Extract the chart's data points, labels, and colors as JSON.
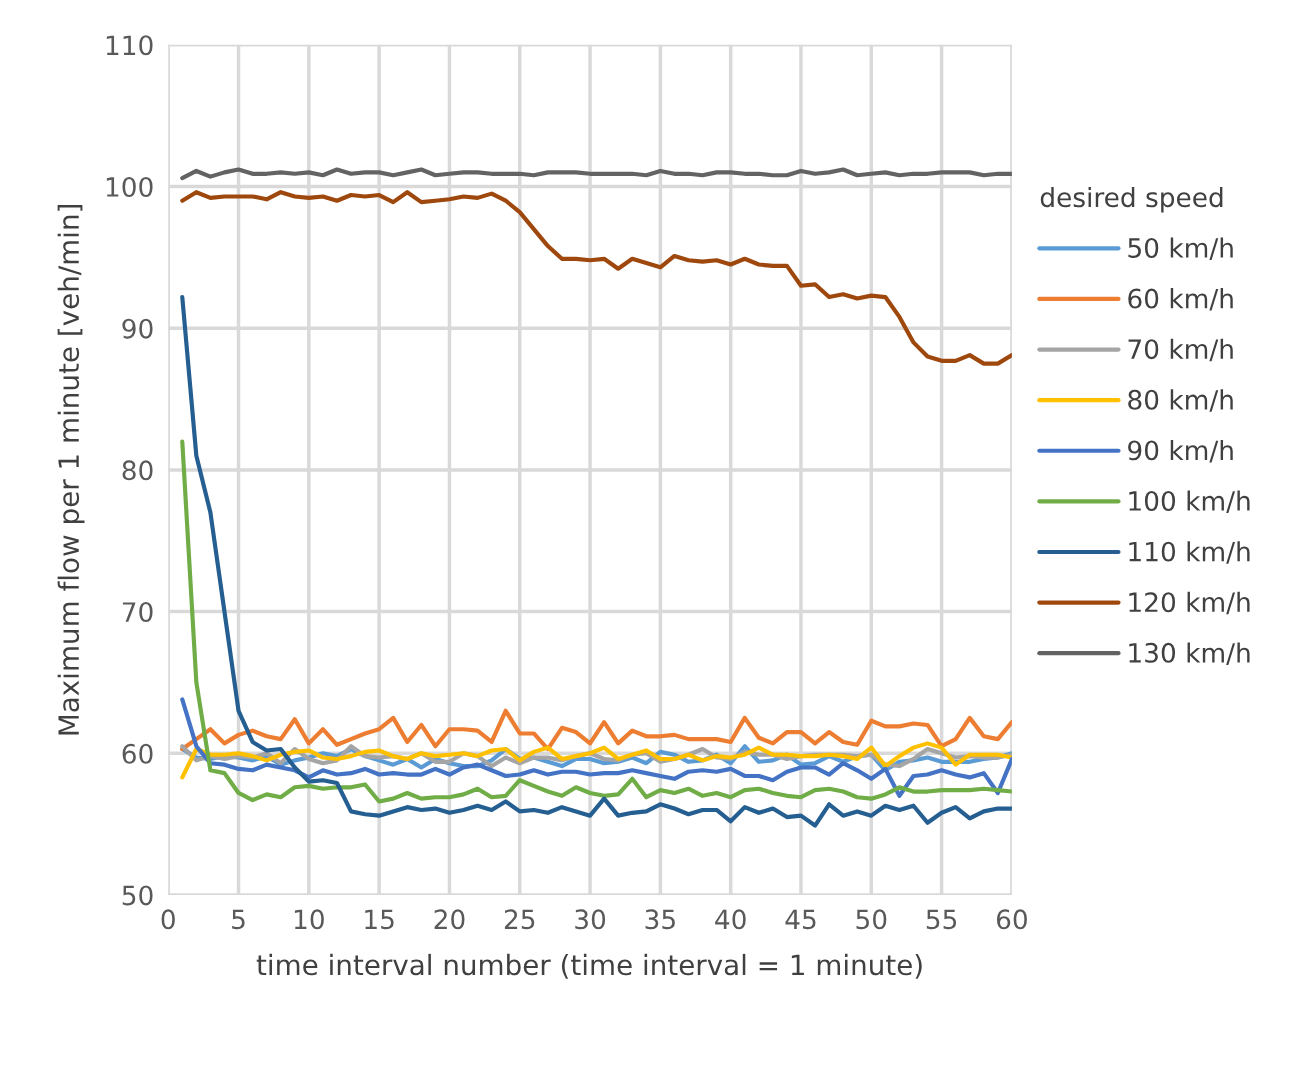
{
  "chart_data": {
    "type": "line",
    "xlabel": "time interval number (time interval = 1 minute)",
    "ylabel": "Maximum flow per 1 minute [veh/min]",
    "legend_title": "desired speed",
    "legend": "right",
    "grid": true,
    "marker": "none",
    "line_style": "solid",
    "xlim": [
      0,
      60
    ],
    "xticks": [
      0,
      5,
      10,
      15,
      20,
      25,
      30,
      35,
      40,
      45,
      50,
      55,
      60
    ],
    "ylim": [
      50,
      110
    ],
    "yticks": [
      50,
      60,
      70,
      80,
      90,
      100,
      110
    ],
    "x": [
      1,
      2,
      3,
      4,
      5,
      6,
      7,
      8,
      9,
      10,
      11,
      12,
      13,
      14,
      15,
      16,
      17,
      18,
      19,
      20,
      21,
      22,
      23,
      24,
      25,
      26,
      27,
      28,
      29,
      30,
      31,
      32,
      33,
      34,
      35,
      36,
      37,
      38,
      39,
      40,
      41,
      42,
      43,
      44,
      45,
      46,
      47,
      48,
      49,
      50,
      51,
      52,
      53,
      54,
      55,
      56,
      57,
      58,
      59,
      60
    ],
    "series": [
      {
        "name": "50 km/h",
        "color": "#5b9bd5",
        "values": [
          60.3,
          59.7,
          59.6,
          59.8,
          59.7,
          59.5,
          59.8,
          59.2,
          59.5,
          59.7,
          60.0,
          59.8,
          60.3,
          59.8,
          59.5,
          59.2,
          59.6,
          59.0,
          59.6,
          59.3,
          59.1,
          59.1,
          59.5,
          60.3,
          59.6,
          59.7,
          59.4,
          59.1,
          59.6,
          59.6,
          59.3,
          59.4,
          59.7,
          59.3,
          60.1,
          59.9,
          59.4,
          59.5,
          59.9,
          59.3,
          60.5,
          59.4,
          59.5,
          59.9,
          59.2,
          59.3,
          59.8,
          59.4,
          59.8,
          59.9,
          58.8,
          59.4,
          59.5,
          59.7,
          59.4,
          59.4,
          59.4,
          59.6,
          59.7,
          60.0
        ]
      },
      {
        "name": "60 km/h",
        "color": "#ed7d31",
        "values": [
          60.3,
          61.0,
          61.7,
          60.7,
          61.3,
          61.6,
          61.2,
          61.0,
          62.4,
          60.7,
          61.7,
          60.6,
          61.0,
          61.4,
          61.7,
          62.5,
          60.8,
          62.0,
          60.5,
          61.7,
          61.7,
          61.6,
          60.8,
          63.0,
          61.4,
          61.4,
          60.3,
          61.8,
          61.5,
          60.7,
          62.2,
          60.7,
          61.6,
          61.2,
          61.2,
          61.3,
          61.0,
          61.0,
          61.0,
          60.8,
          62.5,
          61.1,
          60.7,
          61.5,
          61.5,
          60.7,
          61.5,
          60.8,
          60.6,
          62.3,
          61.9,
          61.9,
          62.1,
          62.0,
          60.5,
          61.0,
          62.5,
          61.2,
          61.0,
          62.2
        ]
      },
      {
        "name": "70 km/h",
        "color": "#a5a5a5",
        "values": [
          60.5,
          59.5,
          59.8,
          59.6,
          59.8,
          59.7,
          60.0,
          59.3,
          60.3,
          59.6,
          59.3,
          59.5,
          60.5,
          59.8,
          59.7,
          59.8,
          59.6,
          60.0,
          59.4,
          59.4,
          60.0,
          59.8,
          59.1,
          59.7,
          59.3,
          59.7,
          59.7,
          59.5,
          59.8,
          60.0,
          59.6,
          59.5,
          59.9,
          60.0,
          59.4,
          59.6,
          59.9,
          60.3,
          59.7,
          59.6,
          60.1,
          59.9,
          59.9,
          59.6,
          59.8,
          59.9,
          59.9,
          59.9,
          59.8,
          59.9,
          59.2,
          59.1,
          59.6,
          60.3,
          60.0,
          59.7,
          59.8,
          59.7,
          59.7,
          59.9
        ]
      },
      {
        "name": "80 km/h",
        "color": "#ffc000",
        "values": [
          58.3,
          60.3,
          59.9,
          59.9,
          60.0,
          59.8,
          59.5,
          59.9,
          60.1,
          60.2,
          59.7,
          59.6,
          59.8,
          60.1,
          60.2,
          59.8,
          59.6,
          60.0,
          59.8,
          59.9,
          60.0,
          59.8,
          60.2,
          60.3,
          59.5,
          60.1,
          60.4,
          59.6,
          59.8,
          60.0,
          60.4,
          59.6,
          59.9,
          60.2,
          59.6,
          59.6,
          59.9,
          59.5,
          59.8,
          59.7,
          59.9,
          60.4,
          59.9,
          59.9,
          59.8,
          59.8,
          59.9,
          59.8,
          59.6,
          60.4,
          59.1,
          59.8,
          60.4,
          60.7,
          60.4,
          59.2,
          59.9,
          59.9,
          59.9,
          59.7
        ]
      },
      {
        "name": "90 km/h",
        "color": "#4472c4",
        "values": [
          63.8,
          60.5,
          59.3,
          59.2,
          58.9,
          58.8,
          59.2,
          59.0,
          58.8,
          58.3,
          58.8,
          58.5,
          58.6,
          58.9,
          58.5,
          58.6,
          58.5,
          58.5,
          58.9,
          58.5,
          59.0,
          59.2,
          58.8,
          58.4,
          58.5,
          58.8,
          58.5,
          58.7,
          58.7,
          58.5,
          58.6,
          58.6,
          58.8,
          58.6,
          58.4,
          58.2,
          58.7,
          58.8,
          58.7,
          58.9,
          58.4,
          58.4,
          58.1,
          58.7,
          59.0,
          59.0,
          58.5,
          59.3,
          58.8,
          58.2,
          58.9,
          57.0,
          58.4,
          58.5,
          58.8,
          58.5,
          58.3,
          58.6,
          57.2,
          59.6
        ]
      },
      {
        "name": "100 km/h",
        "color": "#70ad47",
        "values": [
          82,
          65,
          58.8,
          58.6,
          57.2,
          56.7,
          57.1,
          56.9,
          57.6,
          57.7,
          57.5,
          57.6,
          57.6,
          57.8,
          56.6,
          56.8,
          57.2,
          56.8,
          56.9,
          56.9,
          57.1,
          57.5,
          56.9,
          57.0,
          58.1,
          57.7,
          57.3,
          57.0,
          57.6,
          57.2,
          57.0,
          57.1,
          58.2,
          56.9,
          57.4,
          57.2,
          57.5,
          57.0,
          57.2,
          56.9,
          57.4,
          57.5,
          57.2,
          57.0,
          56.9,
          57.4,
          57.5,
          57.3,
          56.9,
          56.8,
          57.1,
          57.6,
          57.3,
          57.3,
          57.4,
          57.4,
          57.4,
          57.5,
          57.4,
          57.3
        ]
      },
      {
        "name": "110 km/h",
        "color": "#255e91",
        "values": [
          92.2,
          81,
          77,
          70,
          63,
          60.8,
          60.2,
          60.3,
          59.0,
          58.0,
          58.1,
          57.9,
          55.9,
          55.7,
          55.6,
          55.9,
          56.2,
          56.0,
          56.1,
          55.8,
          56.0,
          56.3,
          56.0,
          56.6,
          55.9,
          56.0,
          55.8,
          56.2,
          55.9,
          55.6,
          56.8,
          55.6,
          55.8,
          55.9,
          56.4,
          56.1,
          55.7,
          56.0,
          56.0,
          55.2,
          56.2,
          55.8,
          56.1,
          55.5,
          55.6,
          54.9,
          56.4,
          55.6,
          55.9,
          55.6,
          56.3,
          56.0,
          56.3,
          55.1,
          55.8,
          56.2,
          55.4,
          55.9,
          56.1,
          56.1
        ]
      },
      {
        "name": "120 km/h",
        "color": "#9e480e",
        "values": [
          99.0,
          99.6,
          99.2,
          99.3,
          99.3,
          99.3,
          99.1,
          99.6,
          99.3,
          99.2,
          99.3,
          99.0,
          99.4,
          99.3,
          99.4,
          98.9,
          99.6,
          98.9,
          99.0,
          99.1,
          99.3,
          99.2,
          99.5,
          99.0,
          98.2,
          97.0,
          95.8,
          94.9,
          94.9,
          94.8,
          94.9,
          94.2,
          94.9,
          94.6,
          94.3,
          95.1,
          94.8,
          94.7,
          94.8,
          94.5,
          94.9,
          94.5,
          94.4,
          94.4,
          93.0,
          93.1,
          92.2,
          92.4,
          92.1,
          92.3,
          92.2,
          90.8,
          89.0,
          88.0,
          87.7,
          87.7,
          88.1,
          87.5,
          87.5,
          88.1
        ]
      },
      {
        "name": "130 km/h",
        "color": "#636363",
        "values": [
          100.6,
          101.1,
          100.7,
          101.0,
          101.2,
          100.9,
          100.9,
          101.0,
          100.9,
          101.0,
          100.8,
          101.2,
          100.9,
          101.0,
          101.0,
          100.8,
          101.0,
          101.2,
          100.8,
          100.9,
          101.0,
          101.0,
          100.9,
          100.9,
          100.9,
          100.8,
          101.0,
          101.0,
          101.0,
          100.9,
          100.9,
          100.9,
          100.9,
          100.8,
          101.1,
          100.9,
          100.9,
          100.8,
          101.0,
          101.0,
          100.9,
          100.9,
          100.8,
          100.8,
          101.1,
          100.9,
          101.0,
          101.2,
          100.8,
          100.9,
          101.0,
          100.8,
          100.9,
          100.9,
          101.0,
          101.0,
          101.0,
          100.8,
          100.9,
          100.9
        ]
      }
    ]
  }
}
